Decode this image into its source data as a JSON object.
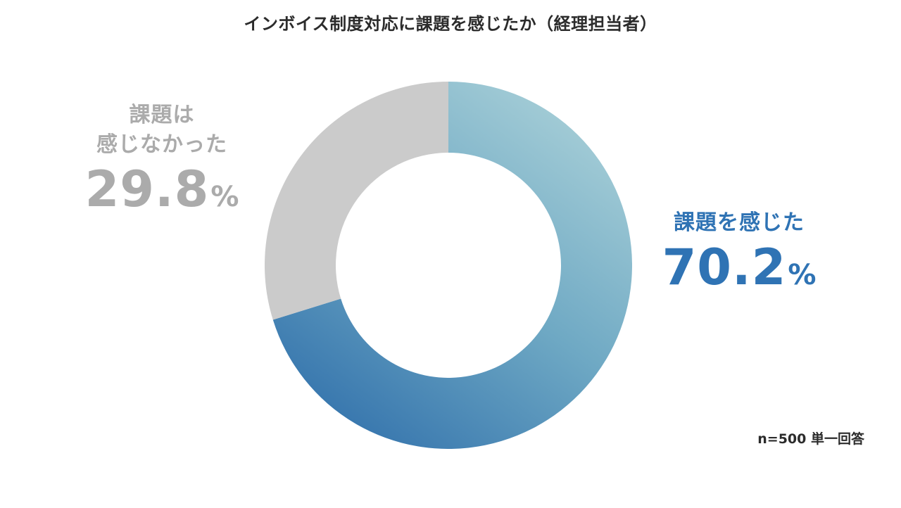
{
  "title": "インボイス制度対応に課題を感じたか（経理担当者）",
  "note": "n=500 単一回答",
  "colors": {
    "felt_start": "#a9d0d8",
    "felt_mid": "#6fa9c4",
    "felt_end": "#3574ad",
    "not_felt": "#cbcbcb",
    "felt_text": "#2f73b4",
    "not_felt_text": "#ababab"
  },
  "labels": {
    "felt": {
      "line1": "課題を感じた",
      "value": "70.2",
      "unit": "%"
    },
    "not_felt": {
      "line1": "課題は",
      "line2": "感じなかった",
      "value": "29.8",
      "unit": "%"
    }
  },
  "chart_data": {
    "type": "pie",
    "title": "インボイス制度対応に課題を感じたか（経理担当者）",
    "donut": true,
    "start": "12 o'clock, clockwise",
    "unit": "%",
    "categories": [
      "課題を感じた",
      "課題は感じなかった"
    ],
    "values": [
      70.2,
      29.8
    ]
  }
}
